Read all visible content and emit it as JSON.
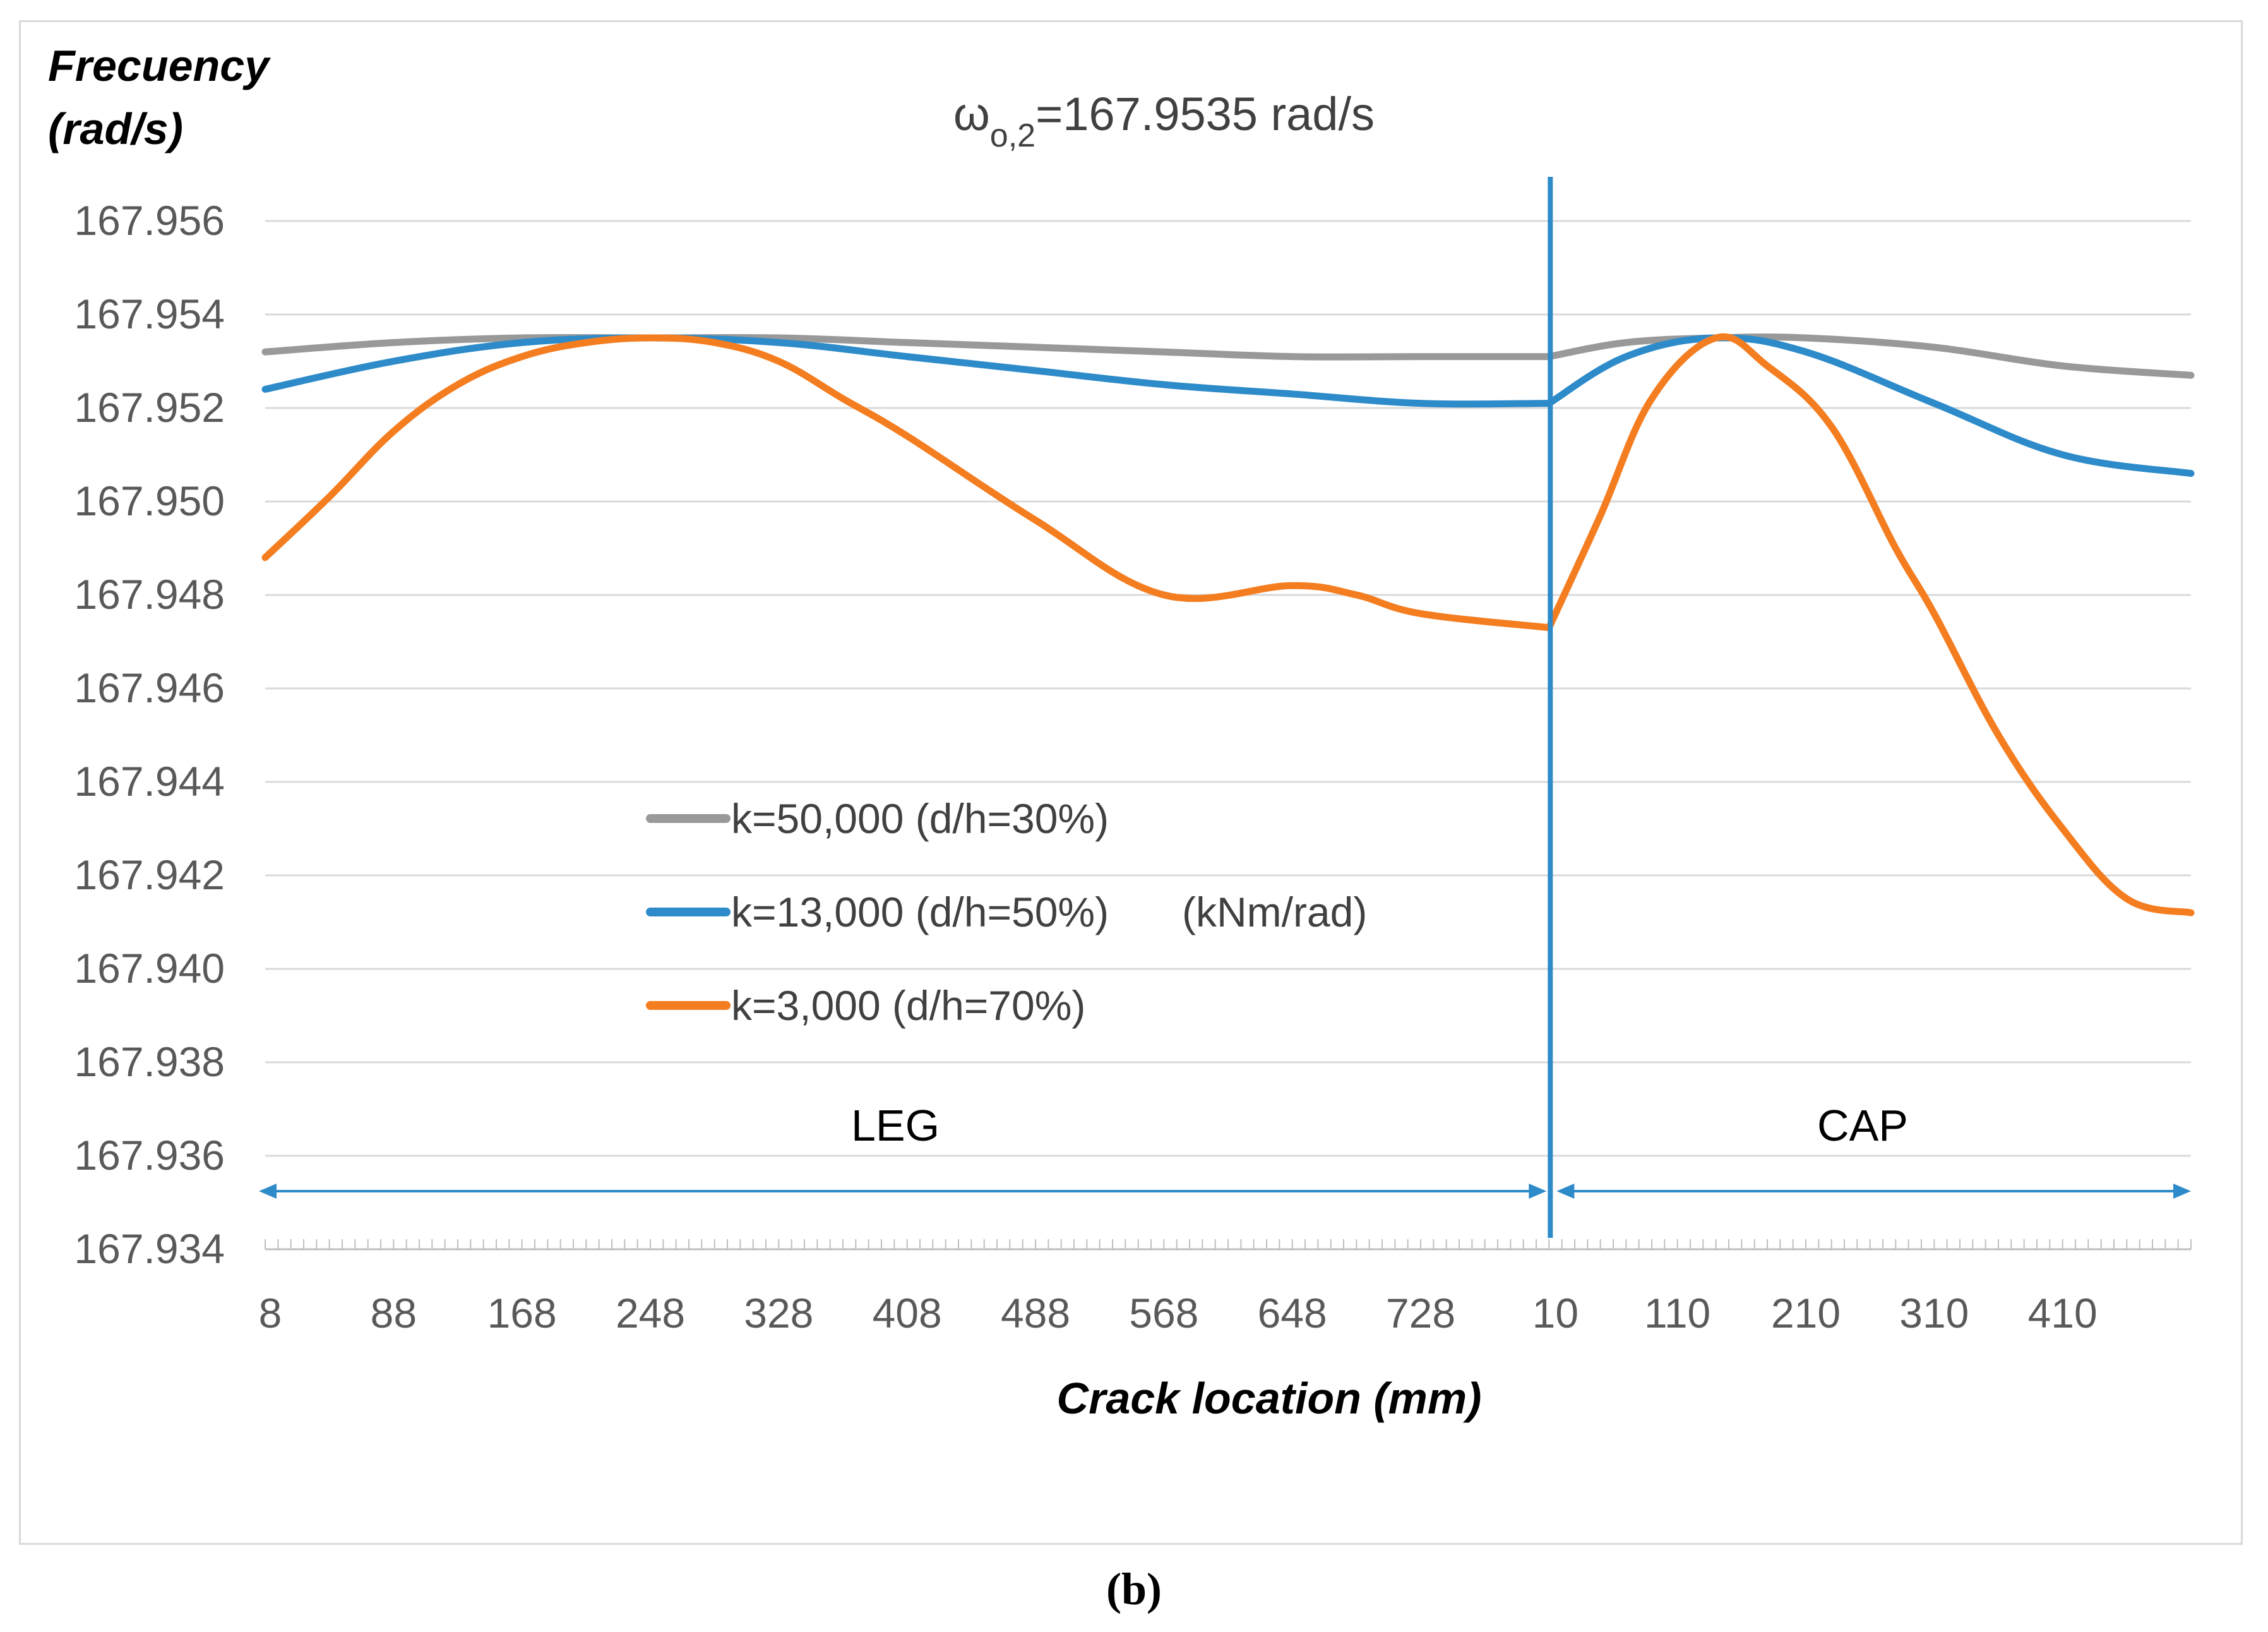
{
  "chart_data": {
    "type": "line",
    "title": "ω",
    "title_sub": "o,2",
    "title_value": "=167.9535 rad/s",
    "ylabel_line1": "Frecuency",
    "ylabel_line2": "(rad/s)",
    "xlabel": "Crack location (mm)",
    "ylim": [
      167.934,
      167.956
    ],
    "yticks": [
      "167.934",
      "167.936",
      "167.938",
      "167.940",
      "167.942",
      "167.944",
      "167.946",
      "167.948",
      "167.950",
      "167.952",
      "167.954",
      "167.956"
    ],
    "x_tick_labels": [
      "8",
      "88",
      "168",
      "248",
      "328",
      "408",
      "488",
      "568",
      "648",
      "728",
      "10",
      "110",
      "210",
      "310",
      "410"
    ],
    "x_tick_positions": [
      0,
      1,
      2,
      3,
      4,
      5,
      6,
      7,
      8,
      9,
      10,
      11,
      12,
      13,
      14
    ],
    "x_range": [
      0,
      15
    ],
    "divider_x": 10,
    "regions": [
      {
        "label": "LEG",
        "from": 0,
        "to": 10
      },
      {
        "label": "CAP",
        "from": 10,
        "to": 15
      }
    ],
    "legend_unit": "(kNm/rad)",
    "series": [
      {
        "name": "k=50,000 (d/h=30%)",
        "color": "#999999",
        "points": [
          [
            0,
            167.9532
          ],
          [
            1,
            167.9534
          ],
          [
            2,
            167.9535
          ],
          [
            3,
            167.9535
          ],
          [
            4,
            167.9535
          ],
          [
            5,
            167.9534
          ],
          [
            6,
            167.9533
          ],
          [
            7,
            167.9532
          ],
          [
            8,
            167.9531
          ],
          [
            9,
            167.9531
          ],
          [
            10,
            167.9531
          ],
          [
            10.6,
            167.9534
          ],
          [
            11.3,
            167.9535
          ],
          [
            12,
            167.9535
          ],
          [
            13,
            167.9533
          ],
          [
            14,
            167.9529
          ],
          [
            15,
            167.9527
          ]
        ]
      },
      {
        "name": "k=13,000 (d/h=50%)",
        "color": "#2e8bc9",
        "points": [
          [
            0,
            167.9524
          ],
          [
            1,
            167.953
          ],
          [
            2,
            167.9534
          ],
          [
            3,
            167.9535
          ],
          [
            4,
            167.9534
          ],
          [
            5,
            167.9531
          ],
          [
            6,
            167.9528
          ],
          [
            7,
            167.9525
          ],
          [
            8,
            167.9523
          ],
          [
            9,
            167.9521
          ],
          [
            10,
            167.9521
          ],
          [
            10.6,
            167.9531
          ],
          [
            11.3,
            167.9535
          ],
          [
            12,
            167.9532
          ],
          [
            13,
            167.9521
          ],
          [
            14,
            167.951
          ],
          [
            15,
            167.9506
          ]
        ]
      },
      {
        "name": "k=3,000 (d/h=70%)",
        "color": "#f47d20",
        "points": [
          [
            0,
            167.9488
          ],
          [
            0.5,
            167.9501
          ],
          [
            1,
            167.9515
          ],
          [
            1.5,
            167.9525
          ],
          [
            2,
            167.9531
          ],
          [
            2.5,
            167.9534
          ],
          [
            3,
            167.9535
          ],
          [
            3.5,
            167.9534
          ],
          [
            4,
            167.953
          ],
          [
            4.5,
            167.9522
          ],
          [
            5,
            167.9514
          ],
          [
            6,
            167.9496
          ],
          [
            7,
            167.948
          ],
          [
            8,
            167.9482
          ],
          [
            8.5,
            167.948
          ],
          [
            9,
            167.9476
          ],
          [
            10,
            167.9473
          ],
          [
            10.4,
            167.9497
          ],
          [
            10.8,
            167.9522
          ],
          [
            11.3,
            167.9535
          ],
          [
            11.7,
            167.9529
          ],
          [
            12.2,
            167.9516
          ],
          [
            12.7,
            167.949
          ],
          [
            13,
            167.9476
          ],
          [
            13.5,
            167.945
          ],
          [
            14,
            167.943
          ],
          [
            14.5,
            167.9415
          ],
          [
            15,
            167.9412
          ]
        ]
      }
    ]
  },
  "caption": "(b)"
}
